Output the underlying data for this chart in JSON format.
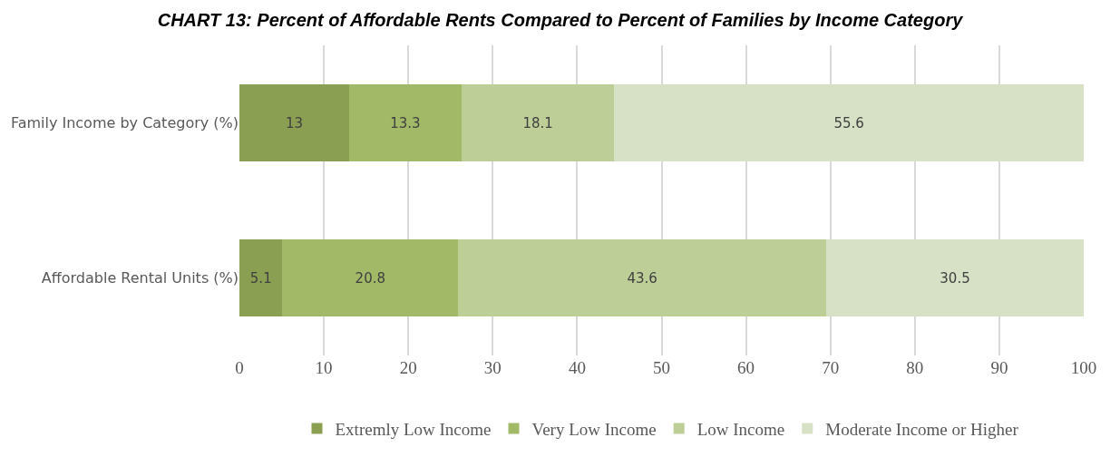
{
  "chart_data": {
    "type": "bar",
    "orientation": "horizontal",
    "stacked": true,
    "title": "CHART 13: Percent of Affordable Rents Compared to Percent of Families by Income Category",
    "categories": [
      "Family Income by Category (%)",
      "Affordable Rental Units (%)"
    ],
    "series": [
      {
        "name": "Extremly Low Income",
        "color": "#8a9f52",
        "values": [
          13,
          5.1
        ]
      },
      {
        "name": "Very Low Income",
        "color": "#a2b968",
        "values": [
          13.3,
          20.8
        ]
      },
      {
        "name": "Low Income",
        "color": "#bdce96",
        "values": [
          18.1,
          43.6
        ]
      },
      {
        "name": "Moderate Income or Higher",
        "color": "#d7e1c5",
        "values": [
          55.6,
          30.5
        ]
      }
    ],
    "xlim": [
      0,
      100
    ],
    "xticks": [
      0,
      10,
      20,
      30,
      40,
      50,
      60,
      70,
      80,
      90,
      100
    ],
    "grid": "x",
    "legend": "bottom",
    "data_labels": true
  }
}
